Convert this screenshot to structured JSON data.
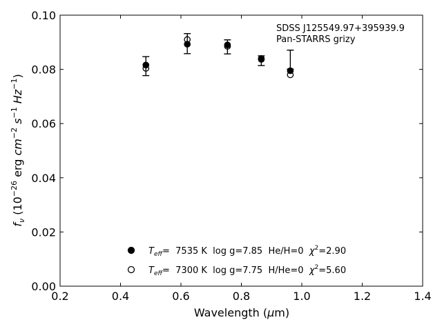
{
  "chart_data": {
    "type": "scatter",
    "annotation": {
      "line1": "SDSS J125549.97+395939.9",
      "line2": "Pan-STARRS grizy"
    },
    "xlabel": {
      "main": "Wavelength (",
      "greek": "μ",
      "unit": "m)"
    },
    "ylabel": {
      "f": "f",
      "nu": "ν",
      "open": " (10",
      "exp1": "−26",
      "erg": " erg ",
      "cm": "cm",
      "exp2": "−2",
      "s": " s",
      "exp3": "−1",
      "hz": " Hz",
      "exp4": "−1",
      "close": ")"
    },
    "xlim": [
      0.2,
      1.4
    ],
    "ylim": [
      0.0,
      0.1
    ],
    "xticks": [
      "0.2",
      "0.4",
      "0.6",
      "0.8",
      "1.0",
      "1.2",
      "1.4"
    ],
    "yticks": [
      "0.00",
      "0.02",
      "0.04",
      "0.06",
      "0.08",
      "0.10"
    ],
    "observed": {
      "x": [
        0.484,
        0.621,
        0.754,
        0.866,
        0.962
      ],
      "y": [
        0.0812,
        0.0895,
        0.0883,
        0.0832,
        0.0836
      ],
      "err": [
        0.0035,
        0.0037,
        0.0026,
        0.0018,
        0.0035
      ]
    },
    "series": [
      {
        "marker": "filled",
        "x": [
          0.484,
          0.621,
          0.754,
          0.866,
          0.962
        ],
        "y": [
          0.0816,
          0.0893,
          0.089,
          0.084,
          0.0795
        ]
      },
      {
        "marker": "open",
        "x": [
          0.484,
          0.621,
          0.754,
          0.866,
          0.962
        ],
        "y": [
          0.0804,
          0.091,
          0.0885,
          0.0837,
          0.078
        ]
      }
    ],
    "legend": {
      "placement": "lower-center",
      "entries": [
        {
          "marker": "filled",
          "teff_sym": "T",
          "teff_sub": "eff",
          "teff_val": "=  7535 K  log g=7.85  He/H=0  ",
          "chi": "χ",
          "chi_exp": "2",
          "chi_val": "=2.90"
        },
        {
          "marker": "open",
          "teff_sym": "T",
          "teff_sub": "eff",
          "teff_val": "=  7300 K  log g=7.75  H/He=0  ",
          "chi": "χ",
          "chi_exp": "2",
          "chi_val": "=5.60"
        }
      ]
    },
    "grid": false
  }
}
